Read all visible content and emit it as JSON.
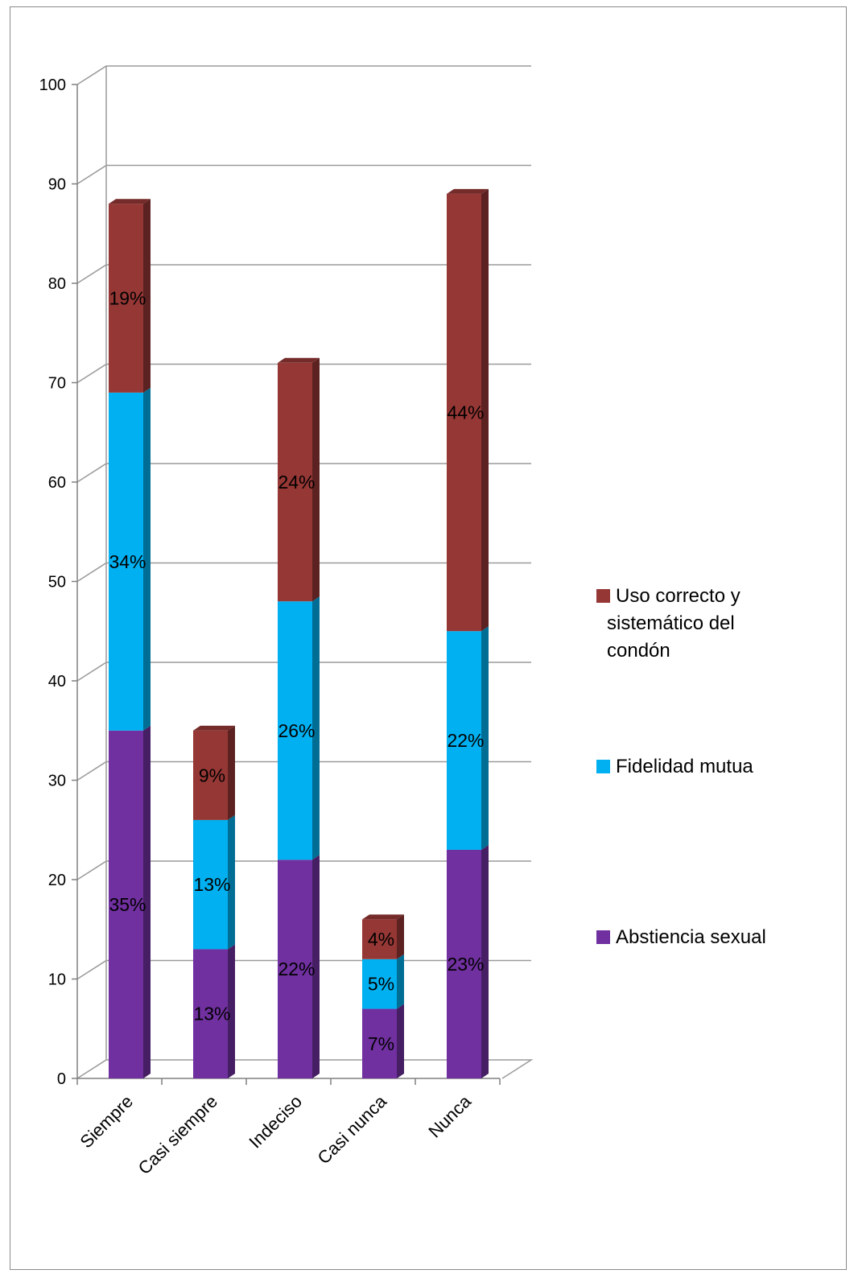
{
  "chart_data": {
    "type": "bar",
    "stacked": true,
    "three_d": true,
    "categories": [
      "Siempre",
      "Casi  siempre",
      "Indeciso",
      "Casi nunca",
      "Nunca"
    ],
    "series": [
      {
        "name": "Abstiencia  sexual",
        "color": "#7030a0",
        "values": [
          35,
          13,
          22,
          7,
          23
        ],
        "labels": [
          "35%",
          "13%",
          "22%",
          "7%",
          "23%"
        ]
      },
      {
        "name": "Fidelidad mutua",
        "color": "#00b0f0",
        "values": [
          34,
          13,
          26,
          5,
          22
        ],
        "labels": [
          "34%",
          "13%",
          "26%",
          "5%",
          "22%"
        ]
      },
      {
        "name": "Uso correcto  y sistemático del condón",
        "legend_lines": [
          "Uso correcto  y",
          "sistemático del",
          "condón"
        ],
        "color": "#953735",
        "values": [
          19,
          9,
          24,
          4,
          44
        ],
        "labels": [
          "19%",
          "9%",
          "24%",
          "4%",
          "44%"
        ]
      }
    ],
    "ylim": [
      0,
      100
    ],
    "yticks": [
      "0",
      "10",
      "20",
      "30",
      "40",
      "50",
      "60",
      "70",
      "80",
      "90",
      "100"
    ],
    "grid": true,
    "legend_position": "right",
    "title": "",
    "xlabel": "",
    "ylabel": ""
  }
}
